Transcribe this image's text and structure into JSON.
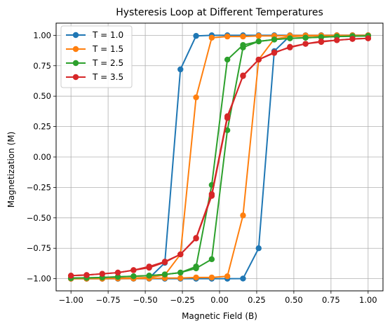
{
  "chart_data": {
    "type": "line",
    "title": "Hysteresis Loop at Different Temperatures",
    "xlabel": "Magnetic Field (B)",
    "ylabel": "Magnetization (M)",
    "xlim": [
      -1.1,
      1.1
    ],
    "ylim": [
      -1.1,
      1.1
    ],
    "xticks": [
      -1.0,
      -0.75,
      -0.5,
      -0.25,
      0.0,
      0.25,
      0.5,
      0.75,
      1.0
    ],
    "xtick_labels": [
      "−1.00",
      "−0.75",
      "−0.50",
      "−0.25",
      "0.00",
      "0.25",
      "0.50",
      "0.75",
      "1.00"
    ],
    "yticks": [
      -1.0,
      -0.75,
      -0.5,
      -0.25,
      0.0,
      0.25,
      0.5,
      0.75,
      1.0
    ],
    "ytick_labels": [
      "−1.00",
      "−0.75",
      "−0.50",
      "−0.25",
      "0.00",
      "0.25",
      "0.50",
      "0.75",
      "1.00"
    ],
    "grid": true,
    "legend_position": "top-left",
    "x": [
      -1.0,
      -0.8947,
      -0.7895,
      -0.6842,
      -0.5789,
      -0.4737,
      -0.3684,
      -0.2632,
      -0.1579,
      -0.0526,
      0.0526,
      0.1579,
      0.2632,
      0.3684,
      0.4737,
      0.5789,
      0.6842,
      0.7895,
      0.8947,
      1.0
    ],
    "series": [
      {
        "name": "T = 1.0",
        "color": "#1f77b4",
        "forward": [
          -1.0,
          -1.0,
          -1.0,
          -1.0,
          -1.0,
          -1.0,
          -1.0,
          -1.0,
          -1.0,
          -1.0,
          -1.0,
          -0.999,
          -0.75,
          0.87,
          0.995,
          0.999,
          1.0,
          1.0,
          1.0,
          1.0
        ],
        "backward": [
          -1.0,
          -1.0,
          -1.0,
          -1.0,
          -0.999,
          -0.995,
          -0.87,
          0.72,
          0.995,
          1.0,
          1.0,
          1.0,
          1.0,
          1.0,
          1.0,
          1.0,
          1.0,
          1.0,
          1.0,
          1.0
        ]
      },
      {
        "name": "T = 1.5",
        "color": "#ff7f0e",
        "forward": [
          -1.0,
          -1.0,
          -1.0,
          -0.999,
          -0.999,
          -0.998,
          -0.995,
          -0.995,
          -0.99,
          -0.99,
          -0.98,
          -0.48,
          0.8,
          0.97,
          0.99,
          0.995,
          0.995,
          0.998,
          0.999,
          0.999
        ],
        "backward": [
          -0.999,
          -0.999,
          -0.998,
          -0.995,
          -0.995,
          -0.99,
          -0.97,
          -0.8,
          0.49,
          0.98,
          0.99,
          0.99,
          0.995,
          0.995,
          0.998,
          0.999,
          0.999,
          1.0,
          1.0,
          1.0
        ]
      },
      {
        "name": "T = 2.5",
        "color": "#2ca02c",
        "forward": [
          -0.995,
          -0.993,
          -0.99,
          -0.985,
          -0.98,
          -0.975,
          -0.965,
          -0.95,
          -0.915,
          -0.84,
          0.22,
          0.9,
          0.95,
          0.965,
          0.975,
          0.98,
          0.985,
          0.99,
          0.993,
          0.995
        ],
        "backward": [
          -0.995,
          -0.993,
          -0.99,
          -0.985,
          -0.98,
          -0.975,
          -0.965,
          -0.95,
          -0.9,
          -0.23,
          0.8,
          0.92,
          0.95,
          0.965,
          0.975,
          0.98,
          0.985,
          0.99,
          0.993,
          0.995
        ]
      },
      {
        "name": "T = 3.5",
        "color": "#d62728",
        "forward": [
          -0.975,
          -0.97,
          -0.96,
          -0.95,
          -0.93,
          -0.9,
          -0.86,
          -0.8,
          -0.67,
          -0.32,
          0.32,
          0.67,
          0.8,
          0.86,
          0.9,
          0.93,
          0.95,
          0.96,
          0.97,
          0.975
        ],
        "backward": [
          -0.975,
          -0.97,
          -0.96,
          -0.95,
          -0.93,
          -0.91,
          -0.865,
          -0.8,
          -0.665,
          -0.305,
          0.335,
          0.665,
          0.8,
          0.855,
          0.905,
          0.93,
          0.945,
          0.96,
          0.97,
          0.975
        ]
      }
    ]
  }
}
